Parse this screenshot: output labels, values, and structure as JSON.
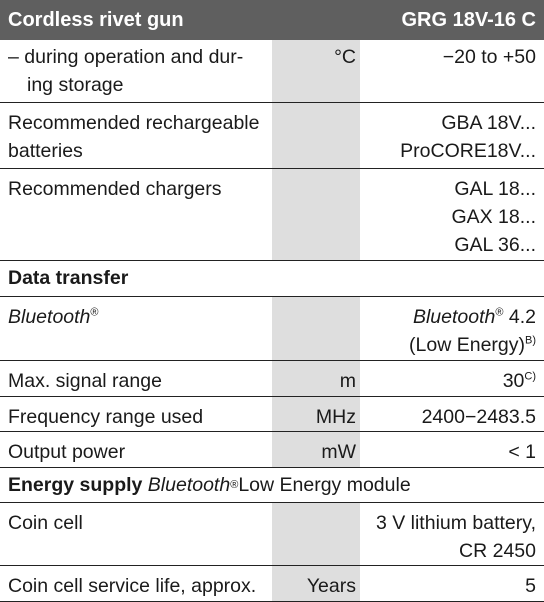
{
  "header": {
    "title": "Cordless rivet gun",
    "model": "GRG 18V-16 C"
  },
  "rows": {
    "storage_temp": {
      "label_line1": "– during operation and dur-",
      "label_line2": "ing storage",
      "unit": "°C",
      "value": "−20 to +50"
    },
    "batteries": {
      "label_line1": "Recommended rechargeable",
      "label_line2": "batteries",
      "value_line1": "GBA 18V...",
      "value_line2": "ProCORE18V..."
    },
    "chargers": {
      "label": "Recommended chargers",
      "value_line1": "GAL 18...",
      "value_line2": "GAX 18...",
      "value_line3": "GAL 36..."
    },
    "data_transfer_heading": "Data transfer",
    "bluetooth": {
      "label": "Bluetooth",
      "reg": "®",
      "value_brand": "Bluetooth",
      "value_reg": "®",
      "value_version": " 4.2",
      "value_line2": "(Low Energy)",
      "value_note": "B)"
    },
    "signal_range": {
      "label": "Max. signal range",
      "unit": "m",
      "value": "30",
      "note": "C)"
    },
    "frequency": {
      "label": "Frequency range used",
      "unit": "MHz",
      "value": "2400−2483.5"
    },
    "output_power": {
      "label": "Output power",
      "unit": "mW",
      "value": "< 1"
    },
    "energy_heading": {
      "bold": "Energy supply",
      "ital": "Bluetooth",
      "reg": "®",
      "rest": " Low Energy module"
    },
    "coin_cell": {
      "label": "Coin cell",
      "value_line1": "3 V lithium battery,",
      "value_line2": "CR 2450"
    },
    "service_life": {
      "label": "Coin cell service life, approx.",
      "unit": "Years",
      "value": "5"
    }
  }
}
